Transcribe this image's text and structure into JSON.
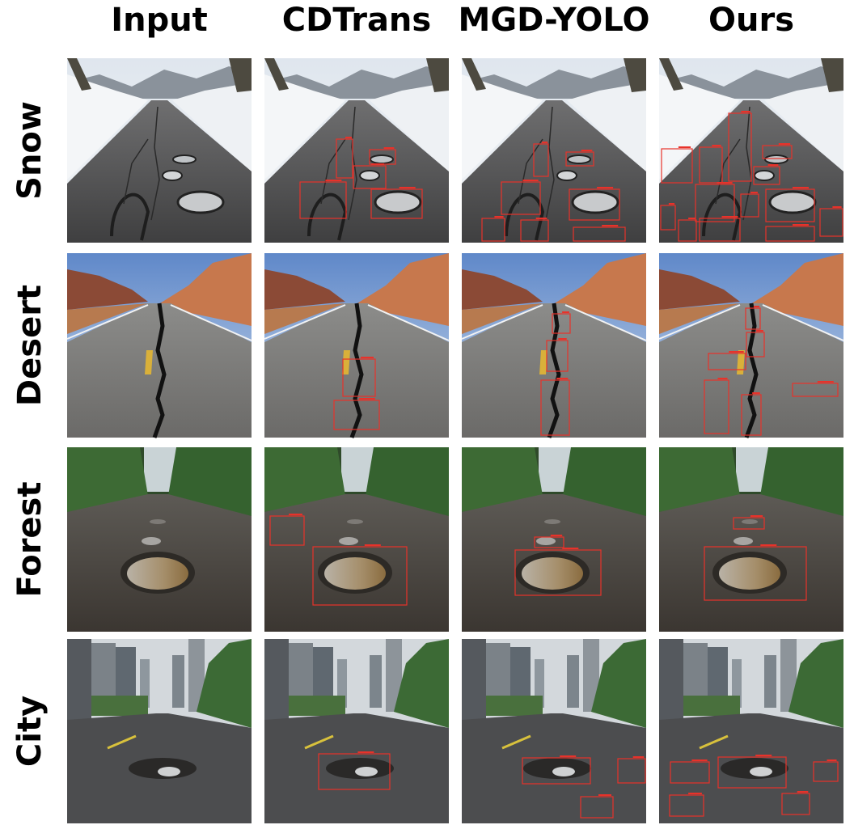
{
  "columns": [
    "Input",
    "CDTrans",
    "MGD-YOLO",
    "Ours"
  ],
  "rows": [
    "Snow",
    "Desert",
    "Forest",
    "City"
  ]
}
